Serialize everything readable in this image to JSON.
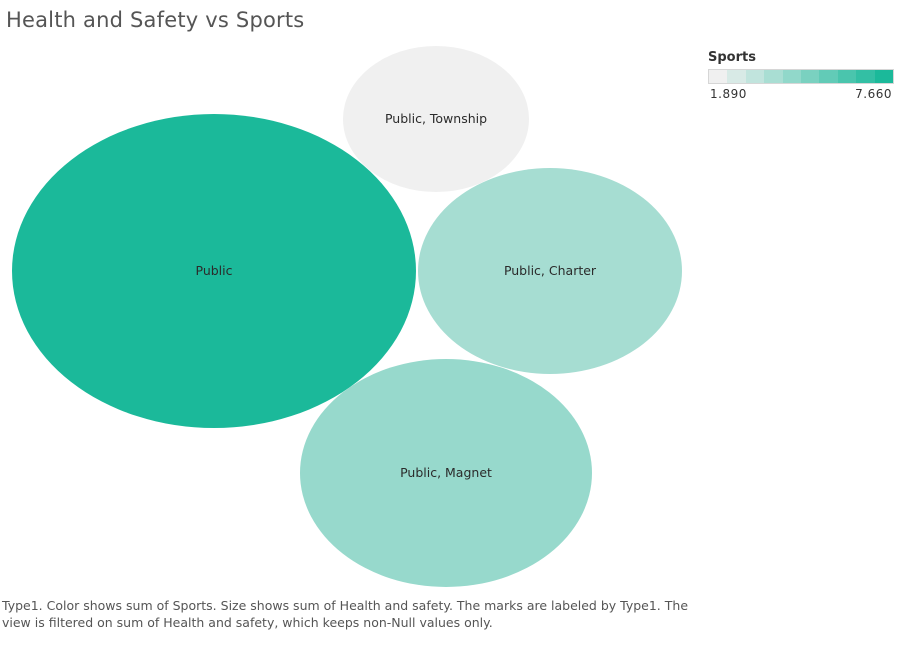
{
  "chart_data": {
    "type": "bubble",
    "title": "Health and Safety vs Sports",
    "size_measure": "Health and safety",
    "color_measure": "Sports",
    "label_field": "Type1",
    "bubbles": [
      {
        "label": "Public",
        "sports": 7.66
      },
      {
        "label": "Public, Township",
        "sports": 1.89
      },
      {
        "label": "Public, Charter",
        "sports": 3.9
      },
      {
        "label": "Public, Magnet",
        "sports": 4.3
      }
    ],
    "legend": {
      "title": "Sports",
      "min_label": "1.890",
      "max_label": "7.660",
      "min": 1.89,
      "max": 7.66,
      "color_low": "#f0f0f0",
      "color_high": "#1bb99a",
      "steps": 10
    },
    "caption": "Type1.  Color shows sum of Sports.  Size shows sum of Health and safety.  The marks are labeled by Type1. The view is filtered on sum of Health and safety, which keeps non-Null values only."
  }
}
